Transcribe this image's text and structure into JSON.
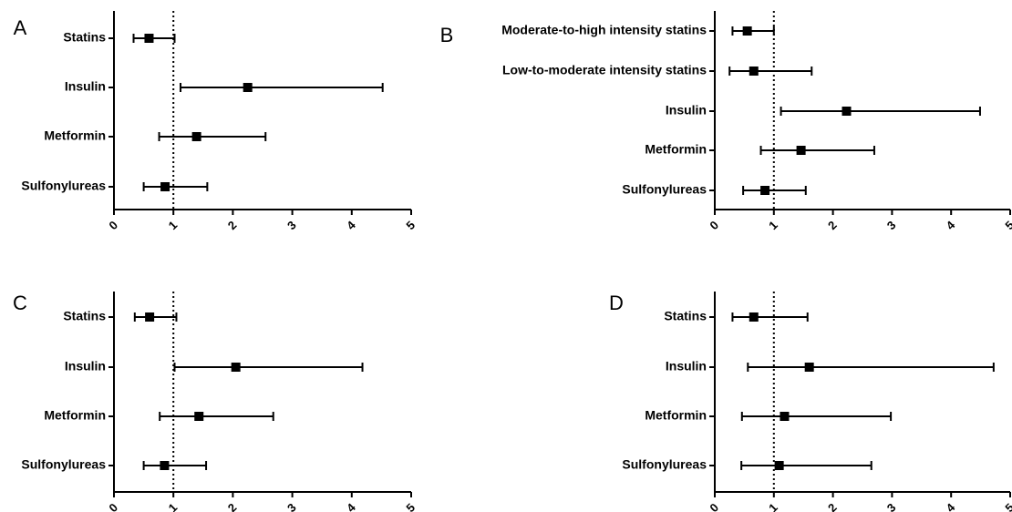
{
  "chart_data": [
    {
      "type": "forest",
      "panel": "A",
      "title": "",
      "xlabel": "",
      "ylabel": "",
      "xlim": [
        0,
        5
      ],
      "xticks": [
        "0",
        "1",
        "2",
        "3",
        "4",
        "5"
      ],
      "reference_line": 1,
      "categories": [
        "Statins",
        "Insulin",
        "Metformin",
        "Sulfonylureas"
      ],
      "estimates": [
        0.59,
        2.25,
        1.39,
        0.86
      ],
      "lower": [
        0.33,
        1.12,
        0.76,
        0.5
      ],
      "upper": [
        1.02,
        4.52,
        2.55,
        1.57
      ]
    },
    {
      "type": "forest",
      "panel": "B",
      "title": "",
      "xlabel": "",
      "ylabel": "",
      "xlim": [
        0,
        5
      ],
      "xticks": [
        "0",
        "1",
        "2",
        "3",
        "4",
        "5"
      ],
      "reference_line": 1,
      "categories": [
        "Moderate-to-high intensity statins",
        "Low-to-moderate intensity statins",
        "Insulin",
        "Metformin",
        "Sulfonylureas"
      ],
      "estimates": [
        0.55,
        0.66,
        2.23,
        1.46,
        0.85
      ],
      "lower": [
        0.3,
        0.25,
        1.12,
        0.78,
        0.48
      ],
      "upper": [
        1.0,
        1.64,
        4.49,
        2.7,
        1.54
      ]
    },
    {
      "type": "forest",
      "panel": "C",
      "title": "",
      "xlabel": "",
      "ylabel": "",
      "xlim": [
        0,
        5
      ],
      "xticks": [
        "0",
        "1",
        "2",
        "3",
        "4",
        "5"
      ],
      "reference_line": 1,
      "categories": [
        "Statins",
        "Insulin",
        "Metformin",
        "Sulfonylureas"
      ],
      "estimates": [
        0.6,
        2.05,
        1.43,
        0.85
      ],
      "lower": [
        0.35,
        1.02,
        0.77,
        0.5
      ],
      "upper": [
        1.05,
        4.18,
        2.68,
        1.55
      ]
    },
    {
      "type": "forest",
      "panel": "D",
      "title": "",
      "xlabel": "",
      "ylabel": "",
      "xlim": [
        0,
        5
      ],
      "xticks": [
        "0",
        "1",
        "2",
        "3",
        "4",
        "5"
      ],
      "reference_line": 1,
      "categories": [
        "Statins",
        "Insulin",
        "Metformin",
        "Sulfonylureas"
      ],
      "estimates": [
        0.66,
        1.6,
        1.18,
        1.09
      ],
      "lower": [
        0.3,
        0.56,
        0.46,
        0.45
      ],
      "upper": [
        1.57,
        4.72,
        2.98,
        2.65
      ]
    }
  ]
}
